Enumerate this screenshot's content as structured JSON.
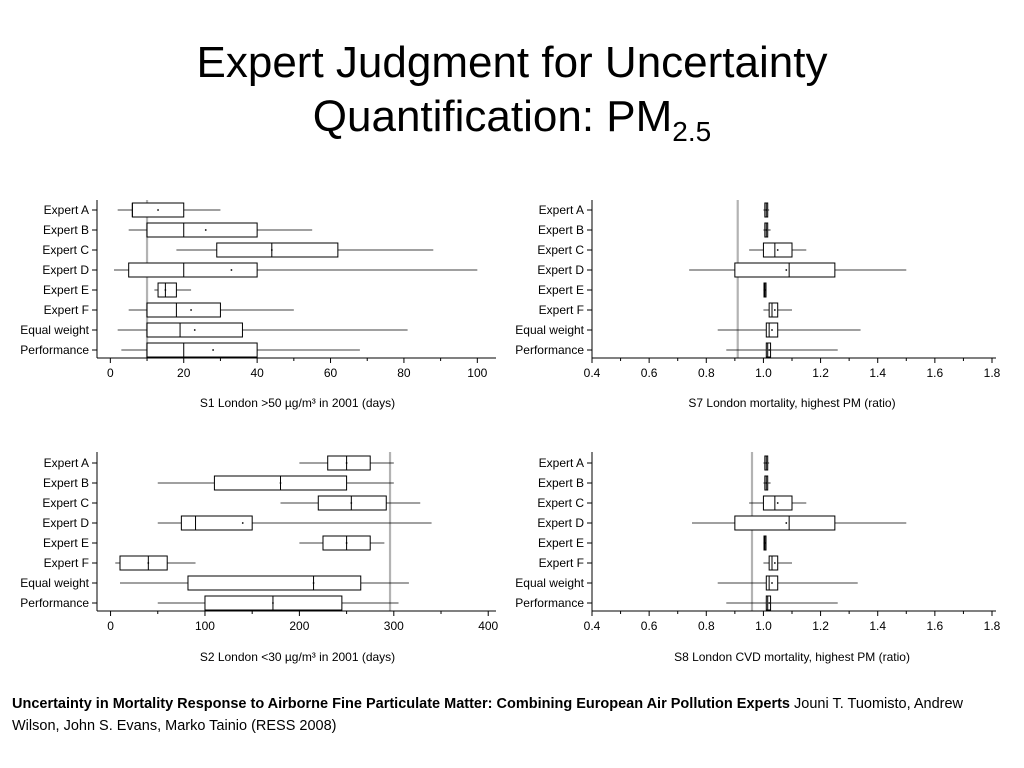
{
  "title": {
    "line1": "Expert Judgment for Uncertainty",
    "line2": "Quantification: PM",
    "subscript": "2.5"
  },
  "citation": {
    "bold": "Uncertainty in Mortality Response to Airborne Fine Particulate Matter: Combining European Air Pollution Experts",
    "rest": " Jouni T. Tuomisto, Andrew Wilson, John S. Evans, Marko Tainio (RESS 2008)"
  },
  "colors": {
    "reference_line": "#b3b3b3",
    "box_stroke": "#000000",
    "text": "#000000"
  },
  "chart_data": [
    {
      "type": "boxplot",
      "xlabel": "S1 London >50 µg/m³ in 2001 (days)",
      "xlim": [
        -2,
        104
      ],
      "xticks": [
        0,
        20,
        40,
        60,
        80,
        100
      ],
      "reference_line": 10,
      "categories": [
        "Expert A",
        "Expert B",
        "Expert C",
        "Expert D",
        "Expert E",
        "Expert F",
        "Equal weight",
        "Performance"
      ],
      "boxes": [
        {
          "wlo": 2,
          "q1": 6,
          "med": 6,
          "q3": 20,
          "whi": 30,
          "mean": 13
        },
        {
          "wlo": 5,
          "q1": 10,
          "med": 20,
          "q3": 40,
          "whi": 55,
          "mean": 26
        },
        {
          "wlo": 18,
          "q1": 29,
          "med": 44,
          "q3": 62,
          "whi": 88,
          "mean": 44
        },
        {
          "wlo": 1,
          "q1": 5,
          "med": 20,
          "q3": 40,
          "whi": 100,
          "mean": 33
        },
        {
          "wlo": 12,
          "q1": 13,
          "med": 15,
          "q3": 18,
          "whi": 22,
          "mean": 15
        },
        {
          "wlo": 5,
          "q1": 10,
          "med": 18,
          "q3": 30,
          "whi": 50,
          "mean": 22
        },
        {
          "wlo": 2,
          "q1": 10,
          "med": 19,
          "q3": 36,
          "whi": 81,
          "mean": 23
        },
        {
          "wlo": 3,
          "q1": 10,
          "med": 20,
          "q3": 40,
          "whi": 68,
          "mean": 28
        }
      ]
    },
    {
      "type": "boxplot",
      "xlabel": "S7 London mortality, highest PM (ratio)",
      "xlim": [
        0.4,
        1.8
      ],
      "xticks": [
        0.4,
        0.6,
        0.8,
        1.0,
        1.2,
        1.4,
        1.6,
        1.8
      ],
      "xticklabels": [
        "0.4",
        "0.6",
        "0.8",
        "1.0",
        "1.2",
        "1.4",
        "1.6",
        "1.8"
      ],
      "reference_line": 0.91,
      "categories": [
        "Expert A",
        "Expert B",
        "Expert C",
        "Expert D",
        "Expert E",
        "Expert F",
        "Equal weight",
        "Performance"
      ],
      "boxes": [
        {
          "wlo": 1.0,
          "q1": 1.005,
          "med": 1.01,
          "q3": 1.015,
          "whi": 1.02,
          "mean": 1.01
        },
        {
          "wlo": 1.0,
          "q1": 1.005,
          "med": 1.01,
          "q3": 1.015,
          "whi": 1.025,
          "mean": 1.01
        },
        {
          "wlo": 0.95,
          "q1": 1.0,
          "med": 1.04,
          "q3": 1.1,
          "whi": 1.15,
          "mean": 1.05
        },
        {
          "wlo": 0.74,
          "q1": 0.9,
          "med": 1.09,
          "q3": 1.25,
          "whi": 1.5,
          "mean": 1.08
        },
        {
          "wlo": 1.0,
          "q1": 1.002,
          "med": 1.005,
          "q3": 1.008,
          "whi": 1.01,
          "mean": 1.005
        },
        {
          "wlo": 1.0,
          "q1": 1.02,
          "med": 1.03,
          "q3": 1.05,
          "whi": 1.1,
          "mean": 1.04
        },
        {
          "wlo": 0.84,
          "q1": 1.01,
          "med": 1.02,
          "q3": 1.05,
          "whi": 1.34,
          "mean": 1.03
        },
        {
          "wlo": 0.87,
          "q1": 1.01,
          "med": 1.015,
          "q3": 1.025,
          "whi": 1.26,
          "mean": 1.02
        }
      ]
    },
    {
      "type": "boxplot",
      "xlabel": "S2 London <30 µg/m³ in 2001 (days)",
      "xlim": [
        -8,
        404
      ],
      "xticks": [
        0,
        100,
        200,
        300,
        400
      ],
      "reference_line": 296,
      "categories": [
        "Expert A",
        "Expert B",
        "Expert C",
        "Expert D",
        "Expert E",
        "Expert F",
        "Equal weight",
        "Performance"
      ],
      "boxes": [
        {
          "wlo": 200,
          "q1": 230,
          "med": 250,
          "q3": 275,
          "whi": 300,
          "mean": 250
        },
        {
          "wlo": 50,
          "q1": 110,
          "med": 180,
          "q3": 250,
          "whi": 300,
          "mean": 180
        },
        {
          "wlo": 180,
          "q1": 220,
          "med": 255,
          "q3": 292,
          "whi": 328,
          "mean": 255
        },
        {
          "wlo": 50,
          "q1": 75,
          "med": 90,
          "q3": 150,
          "whi": 340,
          "mean": 140
        },
        {
          "wlo": 200,
          "q1": 225,
          "med": 250,
          "q3": 275,
          "whi": 290,
          "mean": 250
        },
        {
          "wlo": 5,
          "q1": 10,
          "med": 40,
          "q3": 60,
          "whi": 90,
          "mean": 40
        },
        {
          "wlo": 10,
          "q1": 82,
          "med": 215,
          "q3": 265,
          "whi": 316,
          "mean": 215
        },
        {
          "wlo": 50,
          "q1": 100,
          "med": 172,
          "q3": 245,
          "whi": 305,
          "mean": 172
        }
      ]
    },
    {
      "type": "boxplot",
      "xlabel": "S8 London CVD mortality, highest PM (ratio)",
      "xlim": [
        0.4,
        1.8
      ],
      "xticks": [
        0.4,
        0.6,
        0.8,
        1.0,
        1.2,
        1.4,
        1.6,
        1.8
      ],
      "xticklabels": [
        "0.4",
        "0.6",
        "0.8",
        "1.0",
        "1.2",
        "1.4",
        "1.6",
        "1.8"
      ],
      "reference_line": 0.96,
      "categories": [
        "Expert A",
        "Expert B",
        "Expert C",
        "Expert D",
        "Expert E",
        "Expert F",
        "Equal weight",
        "Performance"
      ],
      "boxes": [
        {
          "wlo": 1.0,
          "q1": 1.005,
          "med": 1.01,
          "q3": 1.015,
          "whi": 1.02,
          "mean": 1.01
        },
        {
          "wlo": 1.0,
          "q1": 1.005,
          "med": 1.01,
          "q3": 1.015,
          "whi": 1.025,
          "mean": 1.01
        },
        {
          "wlo": 0.95,
          "q1": 1.0,
          "med": 1.04,
          "q3": 1.1,
          "whi": 1.15,
          "mean": 1.05
        },
        {
          "wlo": 0.75,
          "q1": 0.9,
          "med": 1.09,
          "q3": 1.25,
          "whi": 1.5,
          "mean": 1.08
        },
        {
          "wlo": 1.0,
          "q1": 1.002,
          "med": 1.005,
          "q3": 1.008,
          "whi": 1.01,
          "mean": 1.005
        },
        {
          "wlo": 1.0,
          "q1": 1.02,
          "med": 1.03,
          "q3": 1.05,
          "whi": 1.1,
          "mean": 1.04
        },
        {
          "wlo": 0.84,
          "q1": 1.01,
          "med": 1.02,
          "q3": 1.05,
          "whi": 1.33,
          "mean": 1.03
        },
        {
          "wlo": 0.87,
          "q1": 1.01,
          "med": 1.015,
          "q3": 1.025,
          "whi": 1.26,
          "mean": 1.02
        }
      ]
    }
  ]
}
